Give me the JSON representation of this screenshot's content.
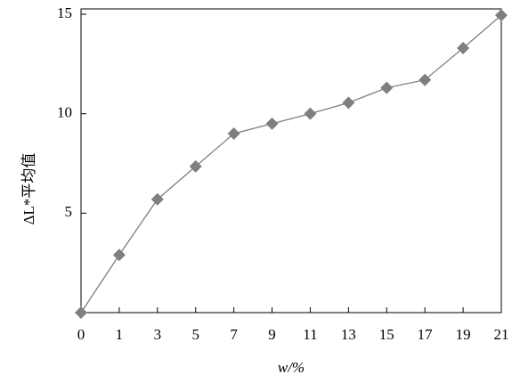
{
  "chart_data": {
    "type": "line",
    "categories": [
      "0",
      "1",
      "3",
      "5",
      "7",
      "9",
      "11",
      "13",
      "15",
      "17",
      "19",
      "21"
    ],
    "values": [
      0,
      2.9,
      5.7,
      7.35,
      9.0,
      9.5,
      10.0,
      10.55,
      11.3,
      11.7,
      13.3,
      14.95
    ],
    "color": "#7f7f7f",
    "ylim": [
      0,
      15
    ],
    "yticks": [
      5,
      10,
      15
    ],
    "xlabel": "w/%",
    "ylabel": "ΔL*平均值"
  }
}
